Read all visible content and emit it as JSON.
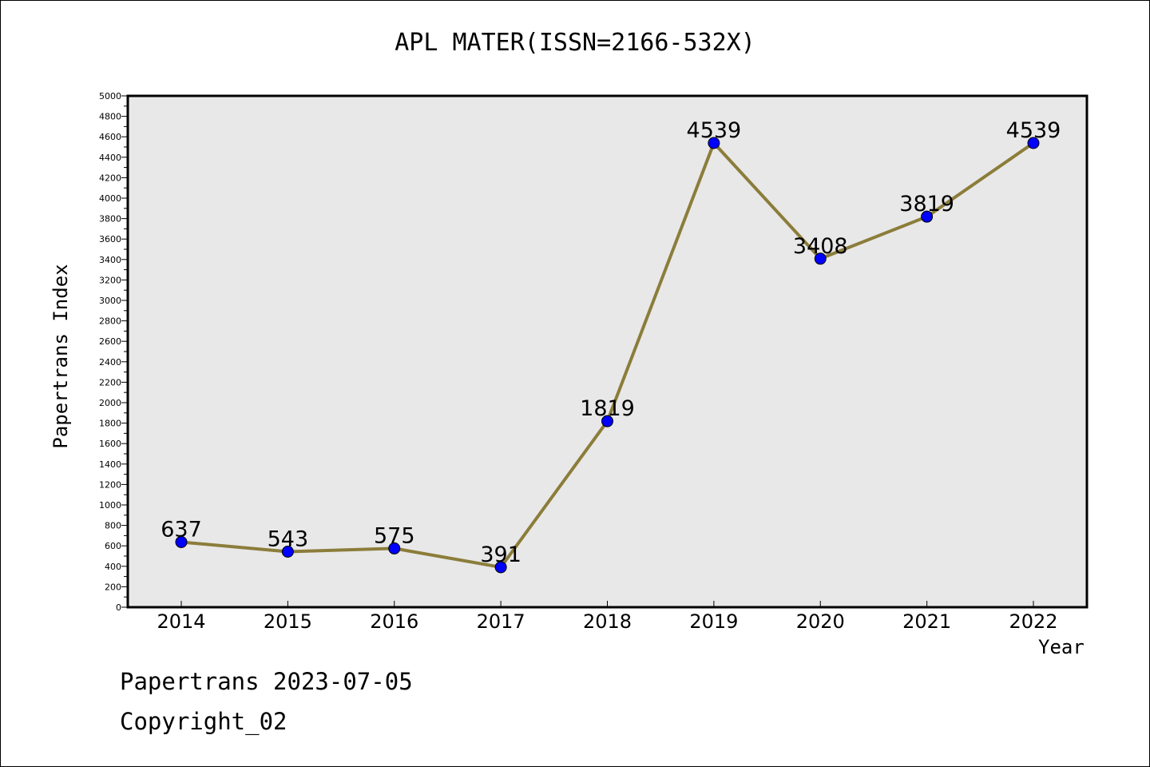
{
  "chart_data": {
    "type": "line",
    "title": "APL MATER(ISSN=2166-532X)",
    "xlabel": "Year",
    "ylabel": "Papertrans Index",
    "categories": [
      "2014",
      "2015",
      "2016",
      "2017",
      "2018",
      "2019",
      "2020",
      "2021",
      "2022"
    ],
    "series": [
      {
        "values": [
          637,
          543,
          575,
          391,
          1819,
          4539,
          3408,
          3819,
          4539
        ]
      }
    ],
    "data_labels": [
      "637",
      "543",
      "575",
      "391",
      "1819",
      "4539",
      "3408",
      "3819",
      "4539"
    ],
    "ylim": [
      0,
      5000
    ],
    "yticks": [
      0,
      200,
      400,
      600,
      800,
      1000,
      1200,
      1400,
      1600,
      1800,
      2000,
      2200,
      2400,
      2600,
      2800,
      3000,
      3200,
      3400,
      3600,
      3800,
      4000,
      4200,
      4400,
      4600,
      4800,
      5000
    ],
    "grid": false,
    "legend": "none",
    "colors": {
      "plot_background": "#e8e8e8",
      "line": "#8b7d3a",
      "marker": "#0000ff",
      "axis": "#000000"
    }
  },
  "footer": {
    "line1": "Papertrans 2023-07-05",
    "line2": "Copyright_02"
  }
}
